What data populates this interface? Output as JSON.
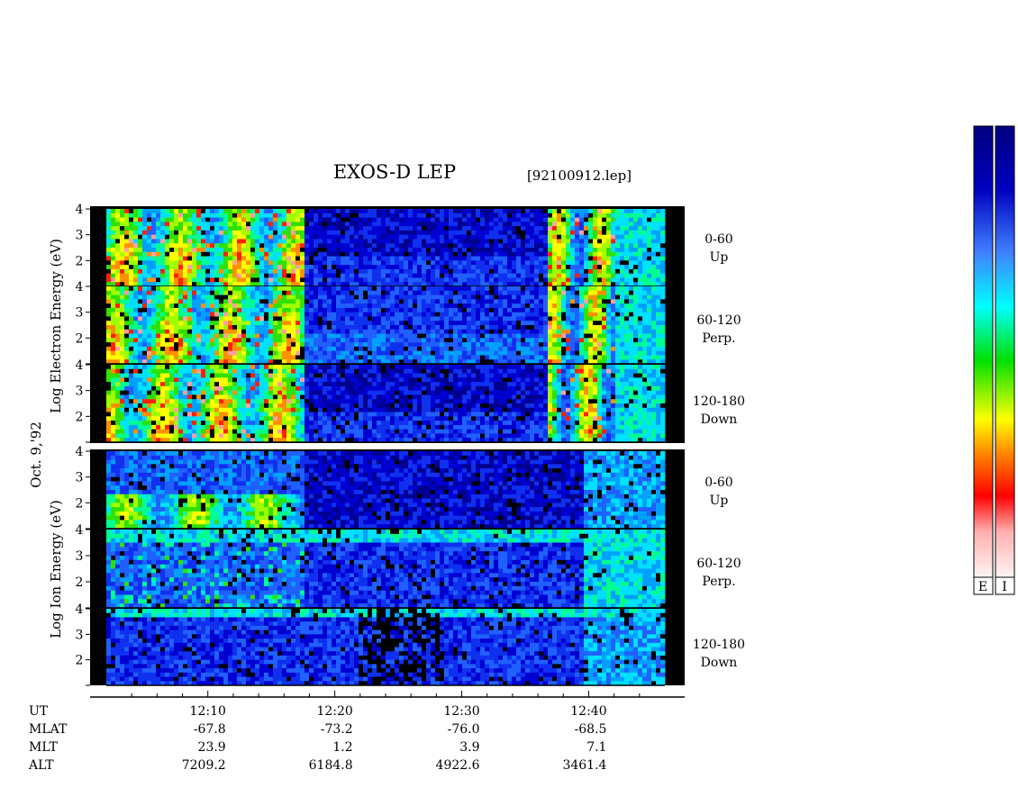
{
  "title": "EXOS-D LEP",
  "file_label": "[92100912.lep]",
  "date_label": "Oct. 9,'92",
  "electron_axis_label": "Log Electron Energy (eV)",
  "ion_axis_label": "Log Ion Energy (eV)",
  "colorbar": {
    "labels": [
      "E",
      "I"
    ],
    "colors": [
      "#fff0f0",
      "#ff0000",
      "#ff8000",
      "#ffff00",
      "#00e000",
      "#00ffff",
      "#4080ff",
      "#0000c0",
      "#000080"
    ]
  },
  "orbit_rows": {
    "labels": [
      "UT",
      "MLAT",
      "MLT",
      "ALT"
    ],
    "ut": [
      "12:10",
      "12:20",
      "12:30",
      "12:40"
    ],
    "mlat": [
      "-67.8",
      "-73.2",
      "-76.0",
      "-68.5"
    ],
    "mlt": [
      "23.9",
      "1.2",
      "3.9",
      "7.1"
    ],
    "alt": [
      "7209.2",
      "6184.8",
      "4922.6",
      "3461.4"
    ]
  },
  "chart_data": {
    "type": "heatmap",
    "x_axis": {
      "unit": "UT",
      "range_minutes": [
        "12:02",
        "12:46"
      ],
      "major_ticks": [
        "12:10",
        "12:20",
        "12:30",
        "12:40"
      ]
    },
    "y_axis": {
      "scale": "log",
      "unit": "eV",
      "range": [
        1,
        4
      ],
      "ticks": [
        "2",
        "3",
        "4"
      ]
    },
    "panels": [
      {
        "species": "electron",
        "pitch_angle": "0-60",
        "direction": "Up"
      },
      {
        "species": "electron",
        "pitch_angle": "60-120",
        "direction": "Perp."
      },
      {
        "species": "electron",
        "pitch_angle": "120-180",
        "direction": "Down"
      },
      {
        "species": "ion",
        "pitch_angle": "0-60",
        "direction": "Up"
      },
      {
        "species": "ion",
        "pitch_angle": "60-120",
        "direction": "Perp."
      },
      {
        "species": "ion",
        "pitch_angle": "120-180",
        "direction": "Down"
      }
    ]
  }
}
